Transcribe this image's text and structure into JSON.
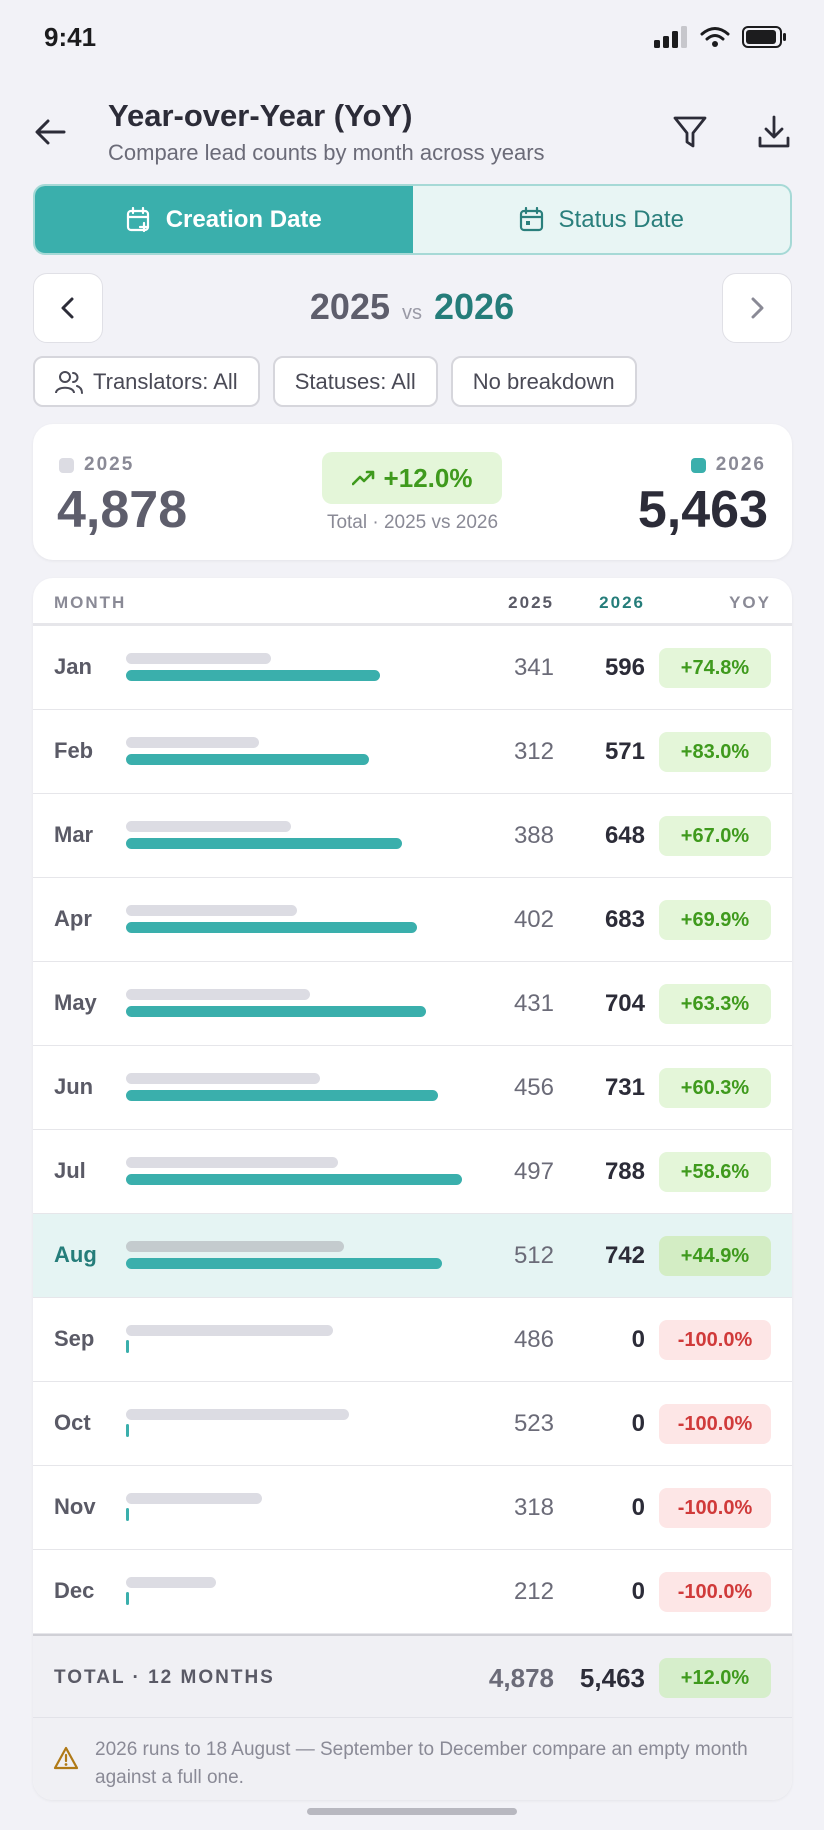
{
  "status_bar": {
    "time": "9:41"
  },
  "header": {
    "title": "Year-over-Year (YoY)",
    "subtitle": "Compare lead counts by month across years"
  },
  "segmented": {
    "creation_label": "Creation Date",
    "status_label": "Status Date",
    "active": "creation"
  },
  "year_nav": {
    "year_a": "2025",
    "vs": "vs",
    "year_b": "2026"
  },
  "filters": {
    "translators": "Translators: All",
    "statuses": "Statuses: All",
    "breakdown": "No breakdown"
  },
  "summary": {
    "year_a_label": "2025",
    "year_a_total": "4,878",
    "year_b_label": "2026",
    "year_b_total": "5,463",
    "change": "+12.0%",
    "note": "Total · 2025 vs 2026"
  },
  "table": {
    "headers": {
      "month": "MONTH",
      "year_a": "2025",
      "year_b": "2026",
      "yoy": "YOY"
    },
    "max_value": 788,
    "rows": [
      {
        "month": "Jan",
        "a": 341,
        "b": 596,
        "yoy": "+74.8%",
        "trend": "pos"
      },
      {
        "month": "Feb",
        "a": 312,
        "b": 571,
        "yoy": "+83.0%",
        "trend": "pos"
      },
      {
        "month": "Mar",
        "a": 388,
        "b": 648,
        "yoy": "+67.0%",
        "trend": "pos"
      },
      {
        "month": "Apr",
        "a": 402,
        "b": 683,
        "yoy": "+69.9%",
        "trend": "pos"
      },
      {
        "month": "May",
        "a": 431,
        "b": 704,
        "yoy": "+63.3%",
        "trend": "pos"
      },
      {
        "month": "Jun",
        "a": 456,
        "b": 731,
        "yoy": "+60.3%",
        "trend": "pos"
      },
      {
        "month": "Jul",
        "a": 497,
        "b": 788,
        "yoy": "+58.6%",
        "trend": "pos"
      },
      {
        "month": "Aug",
        "a": 512,
        "b": 742,
        "yoy": "+44.9%",
        "trend": "pos",
        "highlight": true
      },
      {
        "month": "Sep",
        "a": 486,
        "b": 0,
        "yoy": "-100.0%",
        "trend": "neg"
      },
      {
        "month": "Oct",
        "a": 523,
        "b": 0,
        "yoy": "-100.0%",
        "trend": "neg"
      },
      {
        "month": "Nov",
        "a": 318,
        "b": 0,
        "yoy": "-100.0%",
        "trend": "neg"
      },
      {
        "month": "Dec",
        "a": 212,
        "b": 0,
        "yoy": "-100.0%",
        "trend": "neg"
      }
    ],
    "total": {
      "label": "TOTAL · 12 MONTHS",
      "a": "4,878",
      "b": "5,463",
      "yoy": "+12.0%"
    },
    "footnote": "2026 runs to 18 August — September to December compare an empty month against a full one."
  },
  "colors": {
    "accent": "#3aafac",
    "accent_dark": "#257d7a",
    "positive": "#3f9a1d",
    "negative": "#d03a3a",
    "bar_prior": "#dcdce3"
  },
  "icons": {
    "back": "arrow-left-icon",
    "filter": "filter-icon",
    "download": "download-icon",
    "creation": "calendar-plus-icon",
    "status": "calendar-icon",
    "prev": "chevron-left-icon",
    "next": "chevron-right-icon",
    "translators": "users-icon",
    "trend": "trending-up-icon",
    "warning": "warning-icon"
  }
}
